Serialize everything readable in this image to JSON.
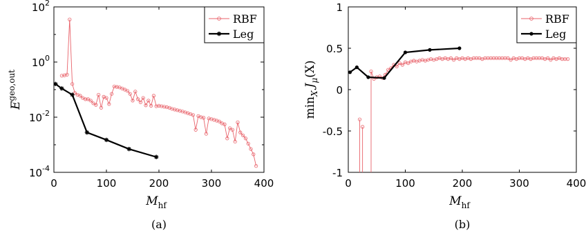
{
  "chart_data": [
    {
      "type": "line",
      "caption": "(a)",
      "xlabel": "M",
      "xlabel_sub": "hf",
      "ylabel": "E",
      "ylabel_sup": "geo,out",
      "xlim": [
        0,
        400
      ],
      "ylim": [
        0.0001,
        100
      ],
      "yscale": "log",
      "x_ticks": [
        "0",
        "100",
        "200",
        "300",
        "400"
      ],
      "x_tick_values": [
        0,
        100,
        200,
        300,
        400
      ],
      "y_ticks": [
        {
          "value": 100,
          "base": "10",
          "exp": "2"
        },
        {
          "value": 1,
          "base": "10",
          "exp": "0"
        },
        {
          "value": 0.01,
          "base": "10",
          "exp": "-2"
        },
        {
          "value": 0.0001,
          "base": "10",
          "exp": "-4"
        }
      ],
      "legend": {
        "position": "top-right",
        "entries": [
          "RBF",
          "Leg"
        ]
      },
      "series": [
        {
          "name": "RBF",
          "color": "#e8626a",
          "marker": "circle",
          "x": [
            15,
            20,
            25,
            30,
            35,
            40,
            45,
            50,
            55,
            60,
            65,
            70,
            75,
            80,
            85,
            90,
            95,
            100,
            105,
            110,
            115,
            120,
            125,
            130,
            135,
            140,
            145,
            150,
            155,
            160,
            165,
            170,
            175,
            180,
            185,
            190,
            195,
            200,
            205,
            210,
            215,
            220,
            225,
            230,
            235,
            240,
            245,
            250,
            255,
            260,
            265,
            270,
            275,
            280,
            285,
            290,
            295,
            300,
            305,
            310,
            315,
            320,
            325,
            330,
            335,
            340,
            345,
            350,
            355,
            360,
            365,
            370,
            375,
            380,
            385
          ],
          "y": [
            0.32,
            0.33,
            0.35,
            35,
            0.16,
            0.075,
            0.065,
            0.06,
            0.05,
            0.045,
            0.045,
            0.04,
            0.032,
            0.028,
            0.065,
            0.022,
            0.055,
            0.05,
            0.03,
            0.07,
            0.13,
            0.125,
            0.12,
            0.11,
            0.1,
            0.09,
            0.07,
            0.04,
            0.085,
            0.045,
            0.035,
            0.05,
            0.027,
            0.04,
            0.026,
            0.06,
            0.025,
            0.026,
            0.025,
            0.024,
            0.023,
            0.022,
            0.02,
            0.019,
            0.018,
            0.017,
            0.016,
            0.015,
            0.014,
            0.013,
            0.012,
            0.0035,
            0.011,
            0.01,
            0.0095,
            0.0025,
            0.009,
            0.0085,
            0.008,
            0.0075,
            0.007,
            0.006,
            0.0055,
            0.0017,
            0.004,
            0.0035,
            0.0013,
            0.0065,
            0.0028,
            0.0022,
            0.0017,
            0.0011,
            0.0007,
            0.00045,
            0.00017
          ]
        },
        {
          "name": "Leg",
          "color": "#000000",
          "marker": "star",
          "x": [
            3,
            15,
            35,
            63,
            100,
            143,
            195
          ],
          "y": [
            0.16,
            0.11,
            0.065,
            0.0028,
            0.0015,
            0.0007,
            0.00036
          ]
        }
      ]
    },
    {
      "type": "line",
      "caption": "(b)",
      "xlabel": "M",
      "xlabel_sub": "hf",
      "ylabel": "min",
      "ylabel_sub": "X",
      "ylabel_rest": "J",
      "ylabel_sub2": "μ",
      "ylabel_arg": "(X)",
      "xlim": [
        0,
        400
      ],
      "ylim": [
        -1,
        1
      ],
      "x_ticks": [
        "0",
        "100",
        "200",
        "300",
        "400"
      ],
      "x_tick_values": [
        0,
        100,
        200,
        300,
        400
      ],
      "y_ticks": [
        "-1",
        "-0.5",
        "0",
        "0.5",
        "1"
      ],
      "y_tick_values": [
        -1,
        -0.5,
        0,
        0.5,
        1
      ],
      "legend": {
        "position": "top-right",
        "entries": [
          "RBF",
          "Leg"
        ]
      },
      "series": [
        {
          "name": "RBF",
          "color": "#e8626a",
          "marker": "circle",
          "x": [
            20,
            25,
            40,
            45,
            50,
            55,
            60,
            65,
            70,
            75,
            80,
            85,
            90,
            95,
            100,
            105,
            110,
            115,
            120,
            125,
            130,
            135,
            140,
            145,
            150,
            155,
            160,
            165,
            170,
            175,
            180,
            185,
            190,
            195,
            200,
            205,
            210,
            215,
            220,
            225,
            230,
            235,
            240,
            245,
            250,
            255,
            260,
            265,
            270,
            275,
            280,
            285,
            290,
            295,
            300,
            305,
            310,
            315,
            320,
            325,
            330,
            335,
            340,
            345,
            350,
            355,
            360,
            365,
            370,
            375,
            380,
            385
          ],
          "y": [
            -0.36,
            -0.45,
            0.22,
            0.13,
            0.15,
            0.16,
            0.14,
            0.18,
            0.24,
            0.26,
            0.3,
            0.28,
            0.32,
            0.3,
            0.33,
            0.32,
            0.34,
            0.35,
            0.34,
            0.35,
            0.36,
            0.35,
            0.36,
            0.37,
            0.36,
            0.37,
            0.38,
            0.37,
            0.38,
            0.37,
            0.38,
            0.36,
            0.38,
            0.37,
            0.38,
            0.37,
            0.38,
            0.37,
            0.38,
            0.38,
            0.38,
            0.37,
            0.38,
            0.38,
            0.38,
            0.38,
            0.38,
            0.38,
            0.38,
            0.38,
            0.38,
            0.36,
            0.38,
            0.37,
            0.38,
            0.38,
            0.37,
            0.38,
            0.37,
            0.38,
            0.38,
            0.38,
            0.38,
            0.37,
            0.38,
            0.36,
            0.38,
            0.37,
            0.38,
            0.37,
            0.37,
            0.37
          ]
        },
        {
          "name": "Leg",
          "color": "#000000",
          "marker": "dot",
          "x": [
            3,
            15,
            35,
            63,
            100,
            143,
            195
          ],
          "y": [
            0.21,
            0.27,
            0.15,
            0.14,
            0.45,
            0.48,
            0.5
          ]
        }
      ]
    }
  ]
}
